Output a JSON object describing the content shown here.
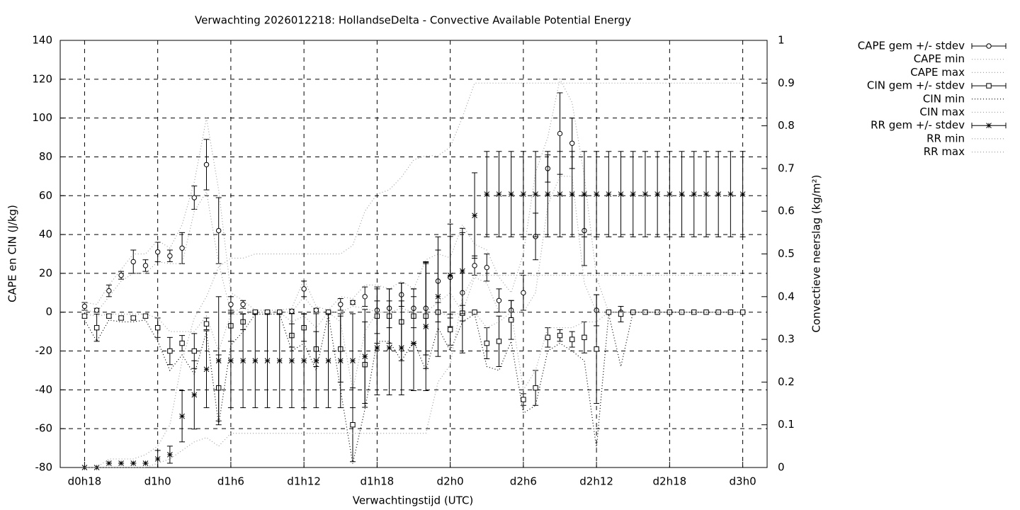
{
  "chart_data": {
    "type": "errorbar-line",
    "title": "Verwachting 2026012218: HollandseDelta - Convective Available Potential Energy",
    "x_label": "Verwachtingstijd (UTC)",
    "y_label": "CAPE en CIN (J/kg)",
    "y2_label": "Convectieve neerslag (kg/m²)",
    "x": [
      18,
      19,
      20,
      21,
      22,
      23,
      24,
      25,
      26,
      27,
      28,
      29,
      30,
      31,
      32,
      33,
      34,
      35,
      36,
      37,
      38,
      39,
      40,
      41,
      42,
      43,
      44,
      45,
      46,
      47,
      48,
      49,
      50,
      51,
      52,
      53,
      54,
      55,
      56,
      57,
      58,
      59,
      60,
      61,
      62,
      63,
      64,
      65,
      66,
      67,
      68,
      69,
      70,
      71,
      72
    ],
    "xlim": [
      16,
      74
    ],
    "xticks": [
      {
        "value": 18,
        "label": "d0h18"
      },
      {
        "value": 24,
        "label": "d1h0"
      },
      {
        "value": 30,
        "label": "d1h6"
      },
      {
        "value": 36,
        "label": "d1h12"
      },
      {
        "value": 42,
        "label": "d1h18"
      },
      {
        "value": 48,
        "label": "d2h0"
      },
      {
        "value": 54,
        "label": "d2h6"
      },
      {
        "value": 60,
        "label": "d2h12"
      },
      {
        "value": 66,
        "label": "d2h18"
      },
      {
        "value": 72,
        "label": "d3h0"
      }
    ],
    "ylim": [
      -80,
      140
    ],
    "yticks": [
      -80,
      -60,
      -40,
      -20,
      0,
      20,
      40,
      60,
      80,
      100,
      120,
      140
    ],
    "y2lim": [
      0,
      1
    ],
    "y2ticks": [
      0,
      0.1,
      0.2,
      0.3,
      0.4,
      0.5,
      0.6,
      0.7,
      0.8,
      0.9,
      1
    ],
    "grid": true,
    "legend": "outside-right",
    "series": [
      {
        "name": "CAPE gem +/- stdev",
        "color": "#000000",
        "marker": "circle",
        "values": [
          3,
          1,
          11,
          19,
          26,
          24,
          31,
          29,
          33,
          59,
          76,
          42,
          4,
          4,
          0,
          0,
          0,
          0.5,
          12,
          1,
          0,
          4,
          5,
          8,
          1,
          2,
          9,
          2,
          2,
          16,
          18,
          10,
          24,
          23,
          6,
          1,
          10,
          39,
          74,
          92,
          87,
          42,
          1,
          0,
          0,
          0,
          0,
          0,
          0,
          0,
          0,
          0,
          0,
          0,
          0
        ],
        "errors": [
          2,
          1,
          3,
          2,
          6,
          3,
          5,
          3,
          8,
          6,
          13,
          17,
          4,
          2,
          0,
          0,
          0,
          1,
          4,
          1,
          0,
          3,
          1,
          5,
          12,
          10,
          6,
          10,
          24,
          16,
          21,
          31,
          5,
          7,
          6,
          5,
          9,
          12,
          7,
          21,
          13,
          18,
          8,
          0,
          0,
          0,
          0,
          0,
          0,
          0,
          0,
          0,
          0,
          0,
          0
        ]
      },
      {
        "name": "CAPE min",
        "color": "#a0a0a0",
        "dash": "dotted",
        "values": [
          1,
          0,
          8,
          16,
          20,
          20,
          26,
          25,
          25,
          52,
          62,
          25,
          0,
          2,
          0,
          0,
          0,
          0,
          8,
          0,
          0,
          0,
          3,
          2,
          0,
          0,
          2,
          0,
          0,
          5,
          10,
          0,
          18,
          15,
          0,
          0,
          0,
          10,
          55,
          70,
          70,
          15,
          0,
          0,
          0,
          0,
          0,
          0,
          0,
          0,
          0,
          0,
          0,
          0,
          0
        ]
      },
      {
        "name": "CAPE max",
        "color": "#a0a0a0",
        "dash": "dotted",
        "values": [
          5,
          4,
          14,
          22,
          30,
          30,
          37,
          33,
          45,
          67,
          100,
          63,
          10,
          6,
          1,
          1,
          1,
          2,
          17,
          3,
          1,
          8,
          7,
          14,
          14,
          12,
          16,
          12,
          27,
          30,
          28,
          45,
          35,
          32,
          18,
          10,
          30,
          72,
          90,
          120,
          108,
          70,
          18,
          0,
          0,
          0,
          0,
          0,
          0,
          0,
          0,
          0,
          0,
          0,
          0
        ]
      },
      {
        "name": "CIN gem +/- stdev",
        "color": "#000000",
        "marker": "square",
        "values": [
          -2,
          -8,
          -2,
          -3,
          -3,
          -2,
          -8,
          -20,
          -16,
          -20,
          -6,
          -39,
          -7,
          -5,
          0,
          0,
          0,
          -12,
          -8,
          -19,
          0,
          -19,
          -58,
          -27,
          -2,
          -2,
          -5,
          -2,
          -2,
          0,
          -9,
          -0.5,
          0,
          -16,
          -15,
          -4,
          -45,
          -39,
          -13,
          -12,
          -14,
          -13,
          -19,
          0,
          -1,
          0,
          0,
          0,
          0,
          0,
          0,
          0,
          0,
          0,
          0
        ],
        "errors": [
          1,
          7,
          1,
          1,
          1,
          1,
          5,
          7,
          4,
          9,
          3,
          17,
          8,
          4,
          1,
          1,
          0,
          6,
          7,
          9,
          0,
          17,
          19,
          22,
          14,
          14,
          20,
          14,
          27,
          5,
          8,
          4,
          0,
          8,
          13,
          10,
          3,
          9,
          5,
          3,
          4,
          8,
          28,
          0,
          4,
          0,
          0,
          0,
          0,
          0,
          0,
          0,
          0,
          0,
          0
        ]
      },
      {
        "name": "CIN min",
        "color": "#000000",
        "dash": "dotted",
        "values": [
          -4,
          -15,
          -4,
          -5,
          -5,
          -4,
          -15,
          -30,
          -22,
          -32,
          -10,
          -58,
          -17,
          -10,
          -1,
          -1,
          -1,
          -20,
          -16,
          -30,
          -1,
          -40,
          -78,
          -50,
          -15,
          -15,
          -25,
          -15,
          -30,
          -8,
          -20,
          -5,
          -1,
          -28,
          -30,
          -15,
          -52,
          -48,
          -20,
          -16,
          -20,
          -25,
          -70,
          -1,
          -28,
          0,
          0,
          0,
          0,
          0,
          0,
          0,
          0,
          0,
          0
        ]
      },
      {
        "name": "CIN max",
        "color": "#a0a0a0",
        "dash": "dotted",
        "values": [
          -1,
          -2,
          -1,
          -1,
          -1,
          -1,
          -3,
          -10,
          -10,
          -10,
          -2,
          -20,
          -1,
          -1,
          0,
          0,
          0,
          -5,
          -2,
          -8,
          0,
          -5,
          -40,
          -10,
          0,
          0,
          0,
          0,
          0,
          0,
          -2,
          0,
          0,
          -8,
          -5,
          0,
          -40,
          -30,
          -8,
          -8,
          -8,
          -5,
          -5,
          0,
          0,
          0,
          0,
          0,
          0,
          0,
          0,
          0,
          0,
          0,
          0
        ]
      },
      {
        "name": "RR gem +/- stdev",
        "color": "#000000",
        "marker": "asterisk",
        "axis": "y2",
        "values": [
          0,
          0,
          0.01,
          0.01,
          0.01,
          0.01,
          0.02,
          0.03,
          0.12,
          0.17,
          0.23,
          0.25,
          0.25,
          0.25,
          0.25,
          0.25,
          0.25,
          0.25,
          0.25,
          0.25,
          0.25,
          0.25,
          0.25,
          0.26,
          0.28,
          0.28,
          0.28,
          0.29,
          0.33,
          0.4,
          0.45,
          0.46,
          0.59,
          0.64,
          0.64,
          0.64,
          0.64,
          0.64,
          0.64,
          0.64,
          0.64,
          0.64,
          0.64,
          0.64,
          0.64,
          0.64,
          0.64,
          0.64,
          0.64,
          0.64,
          0.64,
          0.64,
          0.64,
          0.64,
          0.64
        ],
        "errors": [
          0,
          0,
          0,
          0,
          0,
          0,
          0.02,
          0.02,
          0.06,
          0.08,
          0.09,
          0.15,
          0.11,
          0.11,
          0.11,
          0.11,
          0.11,
          0.11,
          0.11,
          0.11,
          0.11,
          0.11,
          0.11,
          0.11,
          0.11,
          0.11,
          0.11,
          0.11,
          0.15,
          0.14,
          0.12,
          0.1,
          0.1,
          0.1,
          0.1,
          0.1,
          0.1,
          0.1,
          0.1,
          0.1,
          0.1,
          0.1,
          0.1,
          0.1,
          0.1,
          0.1,
          0.1,
          0.1,
          0.1,
          0.1,
          0.1,
          0.1,
          0.1,
          0.1,
          0.1
        ]
      },
      {
        "name": "RR min",
        "color": "#a0a0a0",
        "dash": "dotted",
        "axis": "y2",
        "values": [
          0,
          0,
          0,
          0,
          0,
          0,
          0.01,
          0.02,
          0.04,
          0.06,
          0.07,
          0.05,
          0.08,
          0.08,
          0.08,
          0.08,
          0.08,
          0.08,
          0.08,
          0.08,
          0.08,
          0.08,
          0.08,
          0.08,
          0.08,
          0.08,
          0.08,
          0.08,
          0.08,
          0.2,
          0.24,
          0.4,
          0.45,
          0.45,
          0.45,
          0.45,
          0.45,
          0.45,
          0.45,
          0.45,
          0.45,
          0.45,
          0.45,
          0.45,
          0.45,
          0.45,
          0.45,
          0.45,
          0.45,
          0.45,
          0.45,
          0.45,
          0.45,
          0.45,
          0.45
        ]
      },
      {
        "name": "RR max",
        "color": "#a0a0a0",
        "dash": "dotted",
        "axis": "y2",
        "values": [
          0,
          0,
          0.02,
          0.02,
          0.02,
          0.03,
          0.05,
          0.1,
          0.25,
          0.35,
          0.4,
          0.47,
          0.49,
          0.49,
          0.5,
          0.5,
          0.5,
          0.5,
          0.5,
          0.5,
          0.5,
          0.5,
          0.52,
          0.6,
          0.64,
          0.65,
          0.68,
          0.72,
          0.73,
          0.73,
          0.75,
          0.82,
          0.9,
          0.9,
          0.9,
          0.9,
          0.9,
          0.9,
          0.9,
          0.9,
          0.9,
          0.9,
          0.9,
          0.9,
          0.9,
          0.9,
          0.9,
          0.9,
          0.9,
          0.9,
          0.9,
          0.9,
          0.9,
          0.9,
          0.9
        ]
      }
    ]
  }
}
